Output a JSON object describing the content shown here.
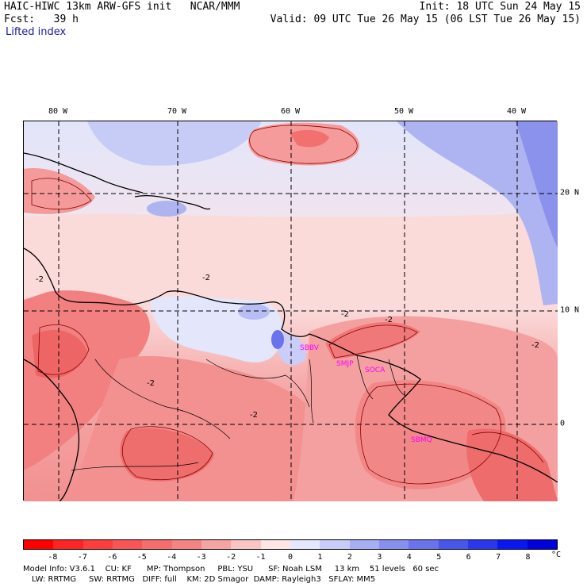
{
  "header": {
    "line1_left": "HAIC-HIWC 13km ARW-GFS init   NCAR/MMM",
    "line1_right": "Init: 18 UTC Sun 24 May 15",
    "line2_left": "Fcst:   39 h",
    "line2_right": "Valid: 09 UTC Tue 26 May 15 (06 LST Tue 26 May 15)",
    "field_name": "Lifted index"
  },
  "map": {
    "longitude_labels": [
      "80 W",
      "70 W",
      "60 W",
      "50 W",
      "40 W"
    ],
    "latitude_labels": [
      "20 N",
      "10 N",
      "0"
    ],
    "contour_labels": [
      "-2",
      "-2",
      "-2",
      "-2",
      "-2",
      "-2",
      "-2"
    ],
    "station_labels": [
      "SBBV",
      "SMJP",
      "SOCA",
      "SBMQ"
    ],
    "colors": {
      "coastline": "#000000",
      "station": "#ff00ff",
      "grid": "#000000"
    }
  },
  "legend": {
    "tick_labels": [
      "-8",
      "-7",
      "-6",
      "-5",
      "-4",
      "-3",
      "-2",
      "-1",
      "0",
      "1",
      "2",
      "3",
      "4",
      "5",
      "6",
      "7",
      "8"
    ],
    "unit": "°C",
    "colors": [
      "#ff0000",
      "#ff2424",
      "#ff3d3d",
      "#fa5555",
      "#f56d6d",
      "#f48484",
      "#f6a3a3",
      "#fac4c4",
      "#fde5e5",
      "#e5e8fd",
      "#c8ccf8",
      "#a8aef3",
      "#8890ef",
      "#6a73ed",
      "#4a55ec",
      "#2a37ee",
      "#0a17f2",
      "#0000dd"
    ]
  },
  "model_info": {
    "line1": "Model Info: V3.6.1    CU: KF      MP: Thompson     PBL: YSU      SF: Noah LSM     13 km    51 levels   60 sec",
    "line2": "LW: RRTMG     SW: RRTMG   DIFF: full    KM: 2D Smagor  DAMP: Rayleigh3   SFLAY: MM5"
  }
}
